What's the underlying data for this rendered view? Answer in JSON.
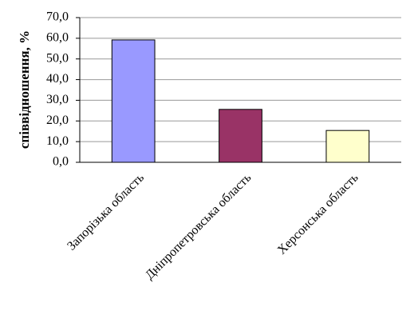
{
  "chart_data": {
    "type": "bar",
    "ylabel": "співвідношення, %",
    "categories": [
      "Запорізька область",
      "Дніпропетровська область",
      "Херсонська область"
    ],
    "values": [
      59.2,
      25.6,
      15.4
    ],
    "colors": [
      "#9999ff",
      "#993366",
      "#ffffcc"
    ],
    "ylim": [
      0,
      70
    ],
    "yticks": [
      {
        "value": 0,
        "label": "0,0"
      },
      {
        "value": 10,
        "label": "10,0"
      },
      {
        "value": 20,
        "label": "20,0"
      },
      {
        "value": 30,
        "label": "30,0"
      },
      {
        "value": 40,
        "label": "40,0"
      },
      {
        "value": 50,
        "label": "50,0"
      },
      {
        "value": 60,
        "label": "60,0"
      },
      {
        "value": 70,
        "label": "70,0"
      }
    ],
    "grid": true
  }
}
